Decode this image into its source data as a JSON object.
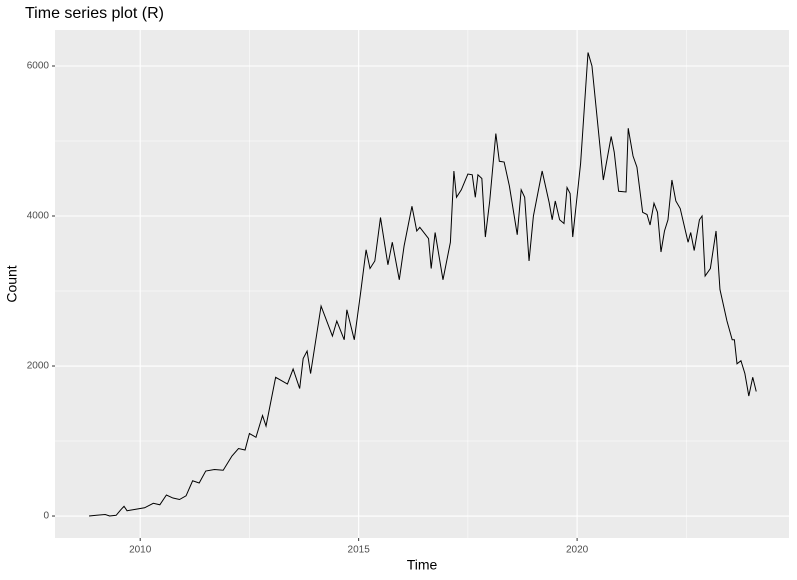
{
  "chart_data": {
    "type": "line",
    "title": "Time series plot (R)",
    "x_label": "Time",
    "y_label": "Count",
    "x": [
      2008.83,
      2009.0,
      2009.2,
      2009.3,
      2009.45,
      2009.55,
      2009.63,
      2009.7,
      2009.9,
      2010.1,
      2010.3,
      2010.45,
      2010.6,
      2010.75,
      2010.9,
      2011.05,
      2011.2,
      2011.35,
      2011.5,
      2011.7,
      2011.9,
      2012.1,
      2012.25,
      2012.4,
      2012.5,
      2012.65,
      2012.8,
      2012.88,
      2013.1,
      2013.37,
      2013.5,
      2013.65,
      2013.73,
      2013.82,
      2013.9,
      2014.14,
      2014.4,
      2014.5,
      2014.67,
      2014.73,
      2014.9,
      2015.05,
      2015.17,
      2015.26,
      2015.37,
      2015.5,
      2015.67,
      2015.77,
      2015.93,
      2016.04,
      2016.22,
      2016.33,
      2016.4,
      2016.6,
      2016.66,
      2016.75,
      2016.93,
      2017.1,
      2017.18,
      2017.24,
      2017.35,
      2017.5,
      2017.6,
      2017.67,
      2017.73,
      2017.82,
      2017.9,
      2018.0,
      2018.14,
      2018.22,
      2018.33,
      2018.45,
      2018.63,
      2018.72,
      2018.8,
      2018.9,
      2019.0,
      2019.2,
      2019.36,
      2019.43,
      2019.5,
      2019.6,
      2019.7,
      2019.77,
      2019.84,
      2019.9,
      2020.08,
      2020.25,
      2020.34,
      2020.6,
      2020.78,
      2020.85,
      2020.95,
      2021.12,
      2021.17,
      2021.28,
      2021.37,
      2021.5,
      2021.6,
      2021.67,
      2021.76,
      2021.84,
      2021.92,
      2022.0,
      2022.08,
      2022.17,
      2022.26,
      2022.36,
      2022.54,
      2022.6,
      2022.68,
      2022.8,
      2022.86,
      2022.93,
      2023.05,
      2023.18,
      2023.27,
      2023.43,
      2023.55,
      2023.6,
      2023.66,
      2023.75,
      2023.84,
      2023.93,
      2024.02,
      2024.1
    ],
    "series": [
      {
        "name": "Count",
        "color": "#000000",
        "values": [
          0,
          10,
          20,
          0,
          10,
          80,
          130,
          70,
          90,
          110,
          170,
          150,
          280,
          240,
          220,
          270,
          470,
          440,
          600,
          620,
          610,
          800,
          900,
          880,
          1100,
          1050,
          1340,
          1200,
          1850,
          1760,
          1960,
          1700,
          2100,
          2200,
          1900,
          2800,
          2400,
          2600,
          2350,
          2750,
          2350,
          3000,
          3550,
          3300,
          3400,
          3980,
          3350,
          3650,
          3150,
          3600,
          4130,
          3800,
          3850,
          3700,
          3300,
          3780,
          3150,
          3650,
          4600,
          4250,
          4350,
          4560,
          4550,
          4250,
          4550,
          4500,
          3720,
          4200,
          5100,
          4730,
          4720,
          4400,
          3750,
          4350,
          4250,
          3400,
          4000,
          4600,
          4180,
          3950,
          4200,
          3950,
          3900,
          4380,
          4300,
          3720,
          4700,
          6180,
          6000,
          4480,
          5060,
          4850,
          4330,
          4320,
          5170,
          4800,
          4650,
          4050,
          4020,
          3880,
          4170,
          4050,
          3520,
          3800,
          3950,
          4480,
          4200,
          4100,
          3650,
          3780,
          3540,
          3950,
          4000,
          3200,
          3300,
          3800,
          3020,
          2600,
          2350,
          2350,
          2030,
          2070,
          1900,
          1600,
          1850,
          1660
        ]
      }
    ],
    "xlim": [
      2008.05,
      2024.85
    ],
    "xticks": [
      2010,
      2015,
      2020
    ],
    "xminor": [
      2012.5,
      2017.5,
      2022.5
    ],
    "ylim": [
      -293,
      6480
    ],
    "yticks": [
      0,
      2000,
      4000,
      6000
    ],
    "yminor": [
      1000,
      3000,
      5000
    ],
    "grid": true
  }
}
